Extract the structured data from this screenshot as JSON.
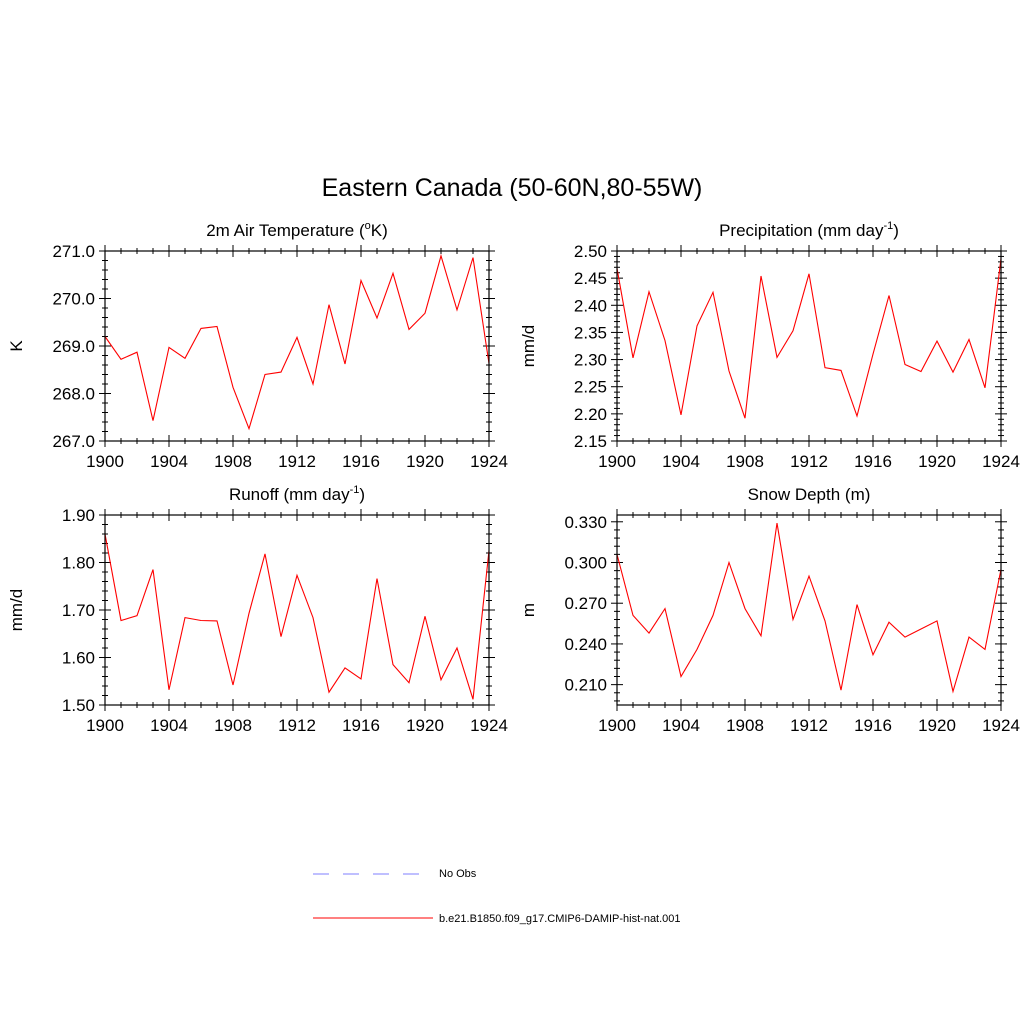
{
  "title": "Eastern Canada (50-60N,80-55W)",
  "colors": {
    "model_line": "#ff0000",
    "obs_line": "#9999ff",
    "axis": "#000000"
  },
  "legend": {
    "placement": "bottom-center",
    "items": [
      {
        "label": "No Obs",
        "style": "dashed",
        "color": "#9999ff"
      },
      {
        "label": "b.e21.B1850.f09_g17.CMIP6-DAMIP-hist-nat.001",
        "style": "solid",
        "color": "#ff0000"
      }
    ]
  },
  "chart_data": [
    {
      "type": "line",
      "title": "2m Air Temperature (",
      "title_sup": "o",
      "title_after": "K)",
      "ylabel": "K",
      "xlim": [
        1900,
        1924
      ],
      "ylim": [
        267.0,
        271.0
      ],
      "xticks": [
        "1900",
        "1904",
        "1908",
        "1912",
        "1916",
        "1920",
        "1924"
      ],
      "yticks": [
        "267.0",
        "268.0",
        "269.0",
        "270.0",
        "271.0"
      ],
      "grid": false,
      "series": [
        {
          "x": [
            1900,
            1901,
            1902,
            1903,
            1904,
            1905,
            1906,
            1907,
            1908,
            1909,
            1910,
            1911,
            1912,
            1913,
            1914,
            1915,
            1916,
            1917,
            1918,
            1919,
            1920,
            1921,
            1922,
            1923,
            1924
          ],
          "values": [
            269.2,
            268.72,
            268.87,
            267.43,
            268.97,
            268.74,
            269.37,
            269.41,
            268.13,
            267.26,
            268.4,
            268.45,
            269.18,
            268.2,
            269.87,
            268.62,
            270.38,
            269.59,
            270.53,
            269.35,
            269.69,
            270.9,
            269.76,
            270.86,
            268.63
          ]
        }
      ]
    },
    {
      "type": "line",
      "title": "Precipitation (mm day",
      "title_sup": "-1",
      "title_after": ")",
      "ylabel": "mm/d",
      "xlim": [
        1900,
        1924
      ],
      "ylim": [
        2.15,
        2.5
      ],
      "xticks": [
        "1900",
        "1904",
        "1908",
        "1912",
        "1916",
        "1920",
        "1924"
      ],
      "yticks": [
        "2.15",
        "2.20",
        "2.25",
        "2.30",
        "2.35",
        "2.40",
        "2.45",
        "2.50"
      ],
      "grid": false,
      "series": [
        {
          "x": [
            1900,
            1901,
            1902,
            1903,
            1904,
            1905,
            1906,
            1907,
            1908,
            1909,
            1910,
            1911,
            1912,
            1913,
            1914,
            1915,
            1916,
            1917,
            1918,
            1919,
            1920,
            1921,
            1922,
            1923,
            1924
          ],
          "values": [
            2.468,
            2.303,
            2.425,
            2.335,
            2.198,
            2.362,
            2.424,
            2.279,
            2.192,
            2.454,
            2.304,
            2.353,
            2.458,
            2.285,
            2.28,
            2.196,
            2.31,
            2.418,
            2.291,
            2.278,
            2.334,
            2.277,
            2.337,
            2.248,
            2.486
          ]
        }
      ]
    },
    {
      "type": "line",
      "title": "Runoff (mm day",
      "title_sup": "-1",
      "title_after": ")",
      "ylabel": "mm/d",
      "xlim": [
        1900,
        1924
      ],
      "ylim": [
        1.5,
        1.9
      ],
      "xticks": [
        "1900",
        "1904",
        "1908",
        "1912",
        "1916",
        "1920",
        "1924"
      ],
      "yticks": [
        "1.50",
        "1.60",
        "1.70",
        "1.80",
        "1.90"
      ],
      "grid": false,
      "series": [
        {
          "x": [
            1900,
            1901,
            1902,
            1903,
            1904,
            1905,
            1906,
            1907,
            1908,
            1909,
            1910,
            1911,
            1912,
            1913,
            1914,
            1915,
            1916,
            1917,
            1918,
            1919,
            1920,
            1921,
            1922,
            1923,
            1924
          ],
          "values": [
            1.86,
            1.678,
            1.688,
            1.785,
            1.532,
            1.684,
            1.678,
            1.677,
            1.542,
            1.693,
            1.818,
            1.644,
            1.773,
            1.684,
            1.527,
            1.578,
            1.555,
            1.766,
            1.585,
            1.547,
            1.687,
            1.553,
            1.62,
            1.512,
            1.825
          ]
        }
      ]
    },
    {
      "type": "line",
      "title": "Snow Depth (m)",
      "title_sup": "",
      "title_after": "",
      "ylabel": "m",
      "xlim": [
        1900,
        1924
      ],
      "ylim": [
        0.195,
        0.335
      ],
      "xticks": [
        "1900",
        "1904",
        "1908",
        "1912",
        "1916",
        "1920",
        "1924"
      ],
      "yticks": [
        "0.210",
        "0.240",
        "0.270",
        "0.300",
        "0.330"
      ],
      "grid": false,
      "series": [
        {
          "x": [
            1900,
            1901,
            1902,
            1903,
            1904,
            1905,
            1906,
            1907,
            1908,
            1909,
            1910,
            1911,
            1912,
            1913,
            1914,
            1915,
            1916,
            1917,
            1918,
            1919,
            1920,
            1921,
            1922,
            1923,
            1924
          ],
          "values": [
            0.306,
            0.261,
            0.248,
            0.266,
            0.216,
            0.236,
            0.261,
            0.3,
            0.266,
            0.246,
            0.329,
            0.258,
            0.29,
            0.257,
            0.206,
            0.269,
            0.232,
            0.256,
            0.245,
            0.251,
            0.257,
            0.205,
            0.245,
            0.236,
            0.295
          ]
        }
      ]
    }
  ]
}
